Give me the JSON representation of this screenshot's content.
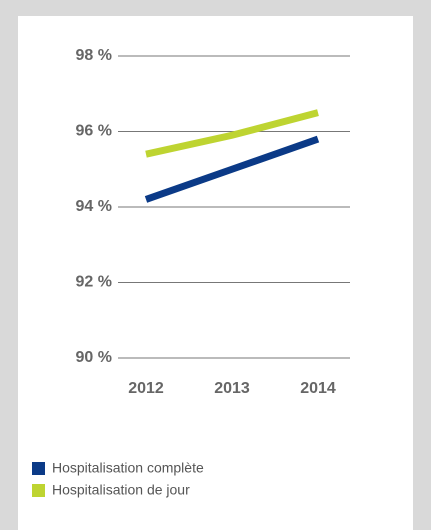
{
  "chart_data": {
    "type": "line",
    "categories": [
      "2012",
      "2013",
      "2014"
    ],
    "series": [
      {
        "name": "Hospitalisation complète",
        "color": "#0b3a87",
        "values": [
          94.2,
          95.0,
          95.8
        ]
      },
      {
        "name": "Hospitalisation de jour",
        "color": "#bed431",
        "values": [
          95.4,
          95.9,
          96.5
        ]
      }
    ],
    "ylim": [
      90,
      98
    ],
    "yticks": [
      {
        "value": 90,
        "label": "90 %"
      },
      {
        "value": 92,
        "label": "92 %"
      },
      {
        "value": 94,
        "label": "94 %"
      },
      {
        "value": 96,
        "label": "96 %"
      },
      {
        "value": 98,
        "label": "98 %"
      }
    ],
    "grid": true
  }
}
